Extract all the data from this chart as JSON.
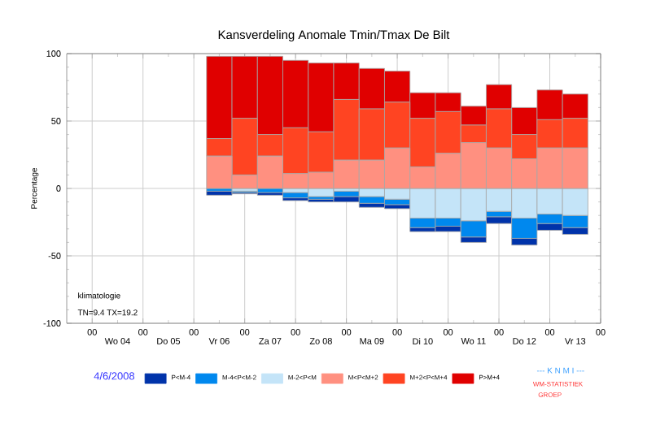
{
  "chart_data": {
    "type": "bar",
    "stacked": true,
    "title": "Kansverdeling Anomale Tmin/Tmax De Bilt",
    "ylabel": "Percentage",
    "x": [
      "2008-06-06T12:00",
      "2008-06-07T00:00",
      "2008-06-07T12:00",
      "2008-06-08T00:00",
      "2008-06-08T12:00",
      "2008-06-09T00:00",
      "2008-06-09T12:00",
      "2008-06-10T00:00",
      "2008-06-10T12:00",
      "2008-06-11T00:00",
      "2008-06-11T12:00",
      "2008-06-12T00:00",
      "2008-06-12T12:00",
      "2008-06-13T00:00",
      "2008-06-13T12:00"
    ],
    "series": [
      {
        "name": "M-2<P<M",
        "color": "#c4e4f8",
        "values": [
          null,
          -2,
          0,
          -3,
          -6,
          -2,
          -6,
          -8,
          -22,
          -22,
          -24,
          -17,
          -22,
          -19,
          -20
        ]
      },
      {
        "name": "M-4<P<M-2",
        "color": "#0088ee",
        "values": [
          -2,
          -1,
          -3,
          -4,
          -2,
          -4,
          -5,
          -4,
          -7,
          -6,
          -12,
          -4,
          -15,
          -7,
          -9
        ]
      },
      {
        "name": "P<M-4",
        "color": "#0033aa",
        "values": [
          -3,
          -1,
          -2,
          -2,
          -2,
          -4,
          -3,
          -3,
          -3,
          -4,
          -4,
          -5,
          -5,
          -5,
          -5
        ]
      },
      {
        "name": "M<P<M+2",
        "color": "#ff9080",
        "values": [
          24,
          10,
          24,
          11,
          12,
          21,
          21,
          30,
          16,
          26,
          34,
          30,
          22,
          30,
          30
        ]
      },
      {
        "name": "M+2<P<M+4",
        "color": "#ff4422",
        "values": [
          13,
          42,
          16,
          34,
          30,
          45,
          38,
          34,
          36,
          31,
          13,
          29,
          18,
          21,
          22
        ]
      },
      {
        "name": "P>M+4",
        "color": "#e00000",
        "values": [
          61,
          46,
          58,
          50,
          51,
          27,
          30,
          23,
          19,
          14,
          14,
          18,
          20,
          22,
          18
        ]
      }
    ],
    "xlim": [
      "2008-06-03T12:00",
      "2008-06-14T00:00"
    ],
    "xticks": [
      {
        "value": "2008-06-04T00:00",
        "label": "00"
      },
      {
        "value": "2008-06-05T00:00",
        "label": "00"
      },
      {
        "value": "2008-06-06T00:00",
        "label": "00"
      },
      {
        "value": "2008-06-07T00:00",
        "label": "00"
      },
      {
        "value": "2008-06-08T00:00",
        "label": "00"
      },
      {
        "value": "2008-06-09T00:00",
        "label": "00"
      },
      {
        "value": "2008-06-10T00:00",
        "label": "00"
      },
      {
        "value": "2008-06-11T00:00",
        "label": "00"
      },
      {
        "value": "2008-06-12T00:00",
        "label": "00"
      },
      {
        "value": "2008-06-13T00:00",
        "label": "00"
      },
      {
        "value": "2008-06-14T00:00",
        "label": "00"
      }
    ],
    "x2lim": [
      "2008-06-03T12:00",
      "2008-06-14T00:00"
    ],
    "x2ticks": [
      {
        "value": "2008-06-04T12:00",
        "label": "Wo 04"
      },
      {
        "value": "2008-06-05T12:00",
        "label": "Do 05"
      },
      {
        "value": "2008-06-06T12:00",
        "label": "Vr 06"
      },
      {
        "value": "2008-06-07T12:00",
        "label": "Za 07"
      },
      {
        "value": "2008-06-08T12:00",
        "label": "Zo 08"
      },
      {
        "value": "2008-06-09T12:00",
        "label": "Ma 09"
      },
      {
        "value": "2008-06-10T12:00",
        "label": "Di 10"
      },
      {
        "value": "2008-06-11T12:00",
        "label": "Wo 11"
      },
      {
        "value": "2008-06-12T12:00",
        "label": "Do 12"
      },
      {
        "value": "2008-06-13T12:00",
        "label": "Vr 13"
      }
    ],
    "ylim": [
      -100,
      100
    ],
    "yticks": [
      -100,
      -50,
      0,
      50,
      100
    ],
    "grid": true,
    "legend": "bottom",
    "annotations": [
      "klimatologie",
      "TN=9.4  TX=19.2",
      "4/6/2008",
      "--- K N M I ---",
      "WM-STATISTIEK",
      "GROEP"
    ]
  }
}
